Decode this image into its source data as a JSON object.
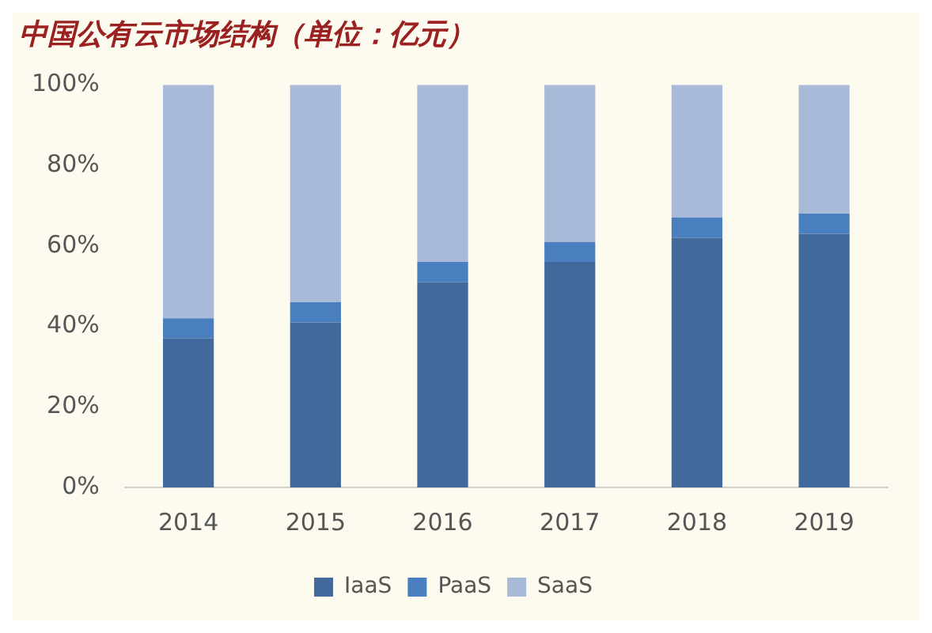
{
  "chart_data": {
    "type": "bar",
    "title": "中国公有云市场结构（单位：亿元）",
    "stacked": true,
    "categories": [
      "2014",
      "2015",
      "2016",
      "2017",
      "2018",
      "2019"
    ],
    "series": [
      {
        "name": "IaaS",
        "color": "#41699c",
        "values": [
          37,
          41,
          51,
          56,
          62,
          63
        ]
      },
      {
        "name": "PaaS",
        "color": "#4a7fbf",
        "values": [
          5,
          5,
          5,
          5,
          5,
          5
        ]
      },
      {
        "name": "SaaS",
        "color": "#a9b9d8",
        "values": [
          58,
          54,
          44,
          39,
          33,
          32
        ]
      }
    ],
    "ylim": [
      0,
      100
    ],
    "yticks": [
      {
        "value": 0,
        "label": "0%"
      },
      {
        "value": 20,
        "label": "20%"
      },
      {
        "value": 40,
        "label": "40%"
      },
      {
        "value": 60,
        "label": "60%"
      },
      {
        "value": 80,
        "label": "80%"
      },
      {
        "value": 100,
        "label": "100%"
      }
    ],
    "grid": false,
    "legend": "bottom"
  }
}
